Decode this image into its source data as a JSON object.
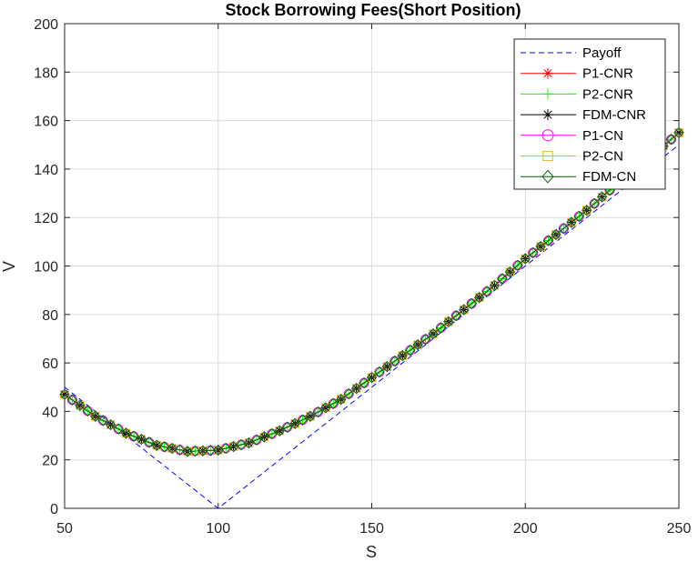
{
  "chart_data": {
    "type": "line",
    "title": "Stock Borrowing Fees(Short Position)",
    "xlabel": "S",
    "ylabel": "V",
    "xlim": [
      50,
      250
    ],
    "ylim": [
      0,
      200
    ],
    "xticks": [
      50,
      100,
      150,
      200,
      250
    ],
    "yticks": [
      0,
      20,
      40,
      60,
      80,
      100,
      120,
      140,
      160,
      180,
      200
    ],
    "grid": true,
    "legend_position": "top-right",
    "payoff": {
      "name": "Payoff",
      "color": "#0000ff",
      "x": [
        50,
        100,
        250
      ],
      "y": [
        50,
        0,
        150
      ]
    },
    "curve": {
      "x": [
        50,
        60,
        70,
        80,
        90,
        100,
        110,
        120,
        130,
        140,
        150,
        160,
        170,
        180,
        190,
        200,
        210,
        220,
        230,
        240,
        250
      ],
      "y": [
        47,
        38,
        31,
        26,
        23.5,
        24,
        27,
        32,
        38,
        45,
        54,
        63,
        72,
        82,
        92,
        103,
        113,
        123,
        134,
        144,
        155
      ]
    },
    "series": [
      {
        "name": "P1-CNR",
        "color": "#ff0000",
        "marker": "asterisk"
      },
      {
        "name": "P2-CNR",
        "color": "#00ff00",
        "marker": "plus"
      },
      {
        "name": "FDM-CNR",
        "color": "#000000",
        "marker": "asterisk"
      },
      {
        "name": "P1-CN",
        "color": "#ff00ff",
        "marker": "circle"
      },
      {
        "name": "P2-CN",
        "color": "#edb120",
        "marker": "square"
      },
      {
        "name": "FDM-CN",
        "color": "#006400",
        "marker": "diamond"
      }
    ]
  }
}
